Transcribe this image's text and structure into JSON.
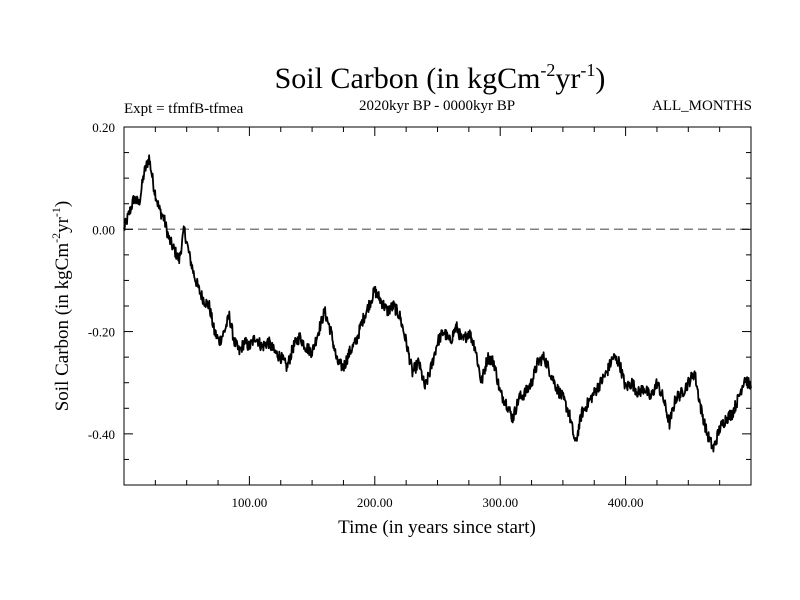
{
  "chart_data": {
    "type": "line",
    "title_main": "Soil Carbon (in kgCm",
    "title_sup1": "-2",
    "title_mid": "yr",
    "title_sup2": "-1",
    "title_end": ")",
    "subtitle_left": "Expt = tfmfB-tfmea",
    "subtitle_center": "2020kyr BP - 0000kyr BP",
    "subtitle_right": "ALL_MONTHS",
    "xlabel": "Time (in years since start)",
    "ylabel_main": "Soil Carbon (in kgCm",
    "ylabel_sup1": "-2",
    "ylabel_mid": "yr",
    "ylabel_sup2": "-1",
    "ylabel_end": ")",
    "xlim": [
      0,
      500
    ],
    "ylim": [
      -0.5,
      0.2
    ],
    "xticks": [
      100,
      200,
      300,
      400
    ],
    "xtick_labels": [
      "100.00",
      "200.00",
      "300.00",
      "400.00"
    ],
    "yticks": [
      0.2,
      0.0,
      -0.2,
      -0.4
    ],
    "ytick_labels": [
      "0.20",
      "0.00",
      "-0.20",
      "-0.40"
    ],
    "reference_line": {
      "y": 0.0,
      "style": "dashed",
      "color": "#808080"
    },
    "series": [
      {
        "name": "Soil Carbon",
        "color": "#000000",
        "noise": 0.012,
        "x": [
          0,
          4,
          8,
          12,
          16,
          20,
          24,
          28,
          32,
          36,
          40,
          44,
          48,
          52,
          56,
          60,
          64,
          68,
          72,
          76,
          80,
          84,
          88,
          92,
          96,
          100,
          105,
          110,
          115,
          120,
          125,
          130,
          135,
          140,
          145,
          150,
          155,
          160,
          165,
          170,
          175,
          180,
          185,
          190,
          195,
          200,
          205,
          210,
          215,
          220,
          225,
          230,
          235,
          240,
          245,
          250,
          255,
          260,
          265,
          270,
          275,
          280,
          285,
          290,
          295,
          300,
          305,
          310,
          315,
          320,
          325,
          330,
          335,
          340,
          345,
          350,
          355,
          360,
          365,
          370,
          375,
          380,
          385,
          390,
          395,
          400,
          405,
          410,
          415,
          420,
          425,
          430,
          435,
          440,
          445,
          450,
          455,
          460,
          465,
          470,
          475,
          480,
          485,
          490,
          495,
          500
        ],
        "y": [
          0.0,
          0.03,
          0.06,
          0.05,
          0.11,
          0.14,
          0.08,
          0.04,
          0.02,
          -0.02,
          -0.04,
          -0.06,
          0.0,
          -0.05,
          -0.09,
          -0.12,
          -0.14,
          -0.15,
          -0.2,
          -0.22,
          -0.2,
          -0.17,
          -0.22,
          -0.24,
          -0.22,
          -0.23,
          -0.21,
          -0.23,
          -0.22,
          -0.24,
          -0.25,
          -0.27,
          -0.23,
          -0.21,
          -0.23,
          -0.24,
          -0.2,
          -0.16,
          -0.2,
          -0.26,
          -0.27,
          -0.24,
          -0.22,
          -0.18,
          -0.15,
          -0.12,
          -0.14,
          -0.16,
          -0.15,
          -0.17,
          -0.22,
          -0.28,
          -0.26,
          -0.31,
          -0.27,
          -0.22,
          -0.2,
          -0.22,
          -0.19,
          -0.22,
          -0.2,
          -0.23,
          -0.3,
          -0.25,
          -0.26,
          -0.32,
          -0.34,
          -0.37,
          -0.33,
          -0.32,
          -0.3,
          -0.26,
          -0.25,
          -0.28,
          -0.31,
          -0.33,
          -0.36,
          -0.42,
          -0.36,
          -0.34,
          -0.32,
          -0.3,
          -0.28,
          -0.25,
          -0.26,
          -0.31,
          -0.3,
          -0.32,
          -0.31,
          -0.33,
          -0.3,
          -0.33,
          -0.38,
          -0.33,
          -0.32,
          -0.3,
          -0.28,
          -0.35,
          -0.4,
          -0.43,
          -0.39,
          -0.37,
          -0.36,
          -0.33,
          -0.29,
          -0.31
        ]
      }
    ],
    "grid": false,
    "legend": "none"
  }
}
